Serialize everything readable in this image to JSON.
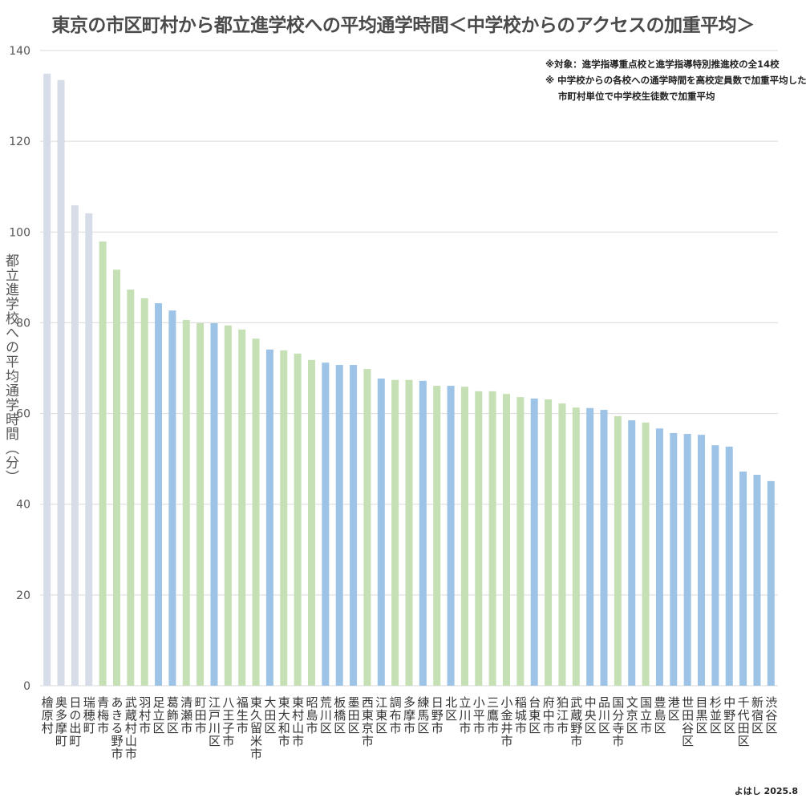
{
  "chart_data": {
    "type": "bar",
    "title": "東京の市区町村から都立進学校への平均通学時間＜中学校からのアクセスの加重平均＞",
    "ylabel": "都立進学校への平均通学時間（分）",
    "xlabel": "",
    "ylim": [
      0,
      140
    ],
    "yticks": [
      0,
      20,
      40,
      60,
      80,
      100,
      120,
      140
    ],
    "grid": true,
    "notes": [
      "※対象：進学指導重点校と進学指導特別推進校の全14校",
      "※ 中学校からの各校への通学時間を高校定員数で加重平均した後、",
      "市町村単位で中学校生徒数で加重平均"
    ],
    "credit": "よはし 2025.8",
    "colors": {
      "town": "#d6dce8",
      "city": "#c5e0b4",
      "ward": "#9dc3e6"
    },
    "categories": [
      "檜原村",
      "奥多摩町",
      "日の出町",
      "瑞穂町",
      "青梅市",
      "あきる野市",
      "武蔵村山市",
      "羽村市",
      "足立区",
      "葛飾区",
      "清瀬市",
      "町田市",
      "江戸川区",
      "八王子市",
      "福生市",
      "東久留米市",
      "大田区",
      "東大和市",
      "東村山市",
      "昭島市",
      "荒川区",
      "板橋区",
      "墨田区",
      "西東京市",
      "江東区",
      "調布市",
      "多摩市",
      "練馬区",
      "日野市",
      "北区",
      "立川市",
      "小平市",
      "三鷹市",
      "小金井市",
      "稲城市",
      "台東区",
      "府中市",
      "狛江市",
      "武蔵野市",
      "中央区",
      "品川区",
      "国分寺市",
      "文京区",
      "国立市",
      "豊島区",
      "港区",
      "世田谷区",
      "目黒区",
      "杉並区",
      "中野区",
      "千代田区",
      "新宿区",
      "渋谷区"
    ],
    "values": [
      134.9,
      133.5,
      105.9,
      104.1,
      97.9,
      91.7,
      87.3,
      85.4,
      84.3,
      82.7,
      80.6,
      79.9,
      79.9,
      79.4,
      78.5,
      76.5,
      74.1,
      73.9,
      73.2,
      71.8,
      71.2,
      70.7,
      70.7,
      69.8,
      67.7,
      67.4,
      67.4,
      67.2,
      66.1,
      66.1,
      65.9,
      64.9,
      64.9,
      64.3,
      63.6,
      63.3,
      63.1,
      62.2,
      61.3,
      61.2,
      60.8,
      59.4,
      58.5,
      58.0,
      56.7,
      55.7,
      55.5,
      55.3,
      53.0,
      52.7,
      47.2,
      46.5,
      45.1
    ]
  }
}
